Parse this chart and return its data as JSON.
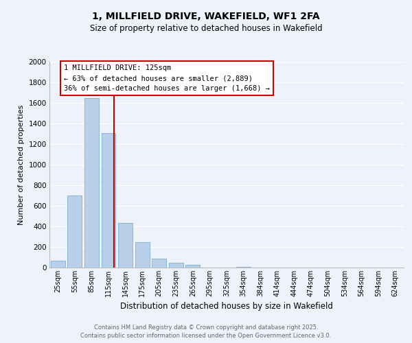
{
  "title1": "1, MILLFIELD DRIVE, WAKEFIELD, WF1 2FA",
  "title2": "Size of property relative to detached houses in Wakefield",
  "xlabel": "Distribution of detached houses by size in Wakefield",
  "ylabel": "Number of detached properties",
  "bar_labels": [
    "25sqm",
    "55sqm",
    "85sqm",
    "115sqm",
    "145sqm",
    "175sqm",
    "205sqm",
    "235sqm",
    "265sqm",
    "295sqm",
    "325sqm",
    "354sqm",
    "384sqm",
    "414sqm",
    "444sqm",
    "474sqm",
    "504sqm",
    "534sqm",
    "564sqm",
    "594sqm",
    "624sqm"
  ],
  "bar_values": [
    65,
    700,
    1650,
    1310,
    435,
    250,
    85,
    50,
    25,
    0,
    0,
    10,
    0,
    0,
    0,
    0,
    0,
    0,
    0,
    0,
    0
  ],
  "bar_color": "#b8d0ea",
  "bar_edge_color": "#7aaed6",
  "vline_color": "#cc0000",
  "annotation_title": "1 MILLFIELD DRIVE: 125sqm",
  "annotation_line1": "← 63% of detached houses are smaller (2,889)",
  "annotation_line2": "36% of semi-detached houses are larger (1,668) →",
  "annotation_box_color": "#ffffff",
  "annotation_box_edge": "#cc0000",
  "ylim": [
    0,
    2000
  ],
  "yticks": [
    0,
    200,
    400,
    600,
    800,
    1000,
    1200,
    1400,
    1600,
    1800,
    2000
  ],
  "bg_color": "#eef2fb",
  "grid_color": "#ffffff",
  "footer1": "Contains HM Land Registry data © Crown copyright and database right 2025.",
  "footer2": "Contains public sector information licensed under the Open Government Licence v3.0."
}
